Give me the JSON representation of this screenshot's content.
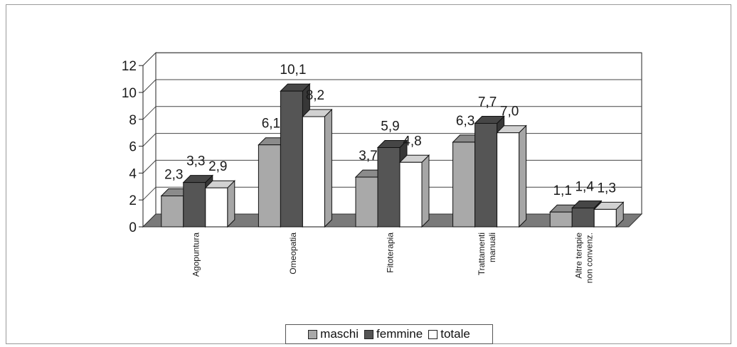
{
  "chart_data": {
    "type": "bar",
    "style": "3d-clustered-column",
    "categories": [
      "Agopuntura",
      "Omeopatia",
      "Fitoterapia",
      "Trattamenti manuali",
      "Altre terapie non convenz."
    ],
    "category_lines": [
      [
        "Agopuntura"
      ],
      [
        "Omeopatia"
      ],
      [
        "Fitoterapia"
      ],
      [
        "Trattamenti",
        "manuali"
      ],
      [
        "Altre terapie",
        "non convenz."
      ]
    ],
    "series": [
      {
        "name": "maschi",
        "values": [
          2.3,
          6.1,
          3.7,
          6.3,
          1.1
        ],
        "labels": [
          "2,3",
          "6,1",
          "3,7",
          "6,3",
          "1,1"
        ],
        "color": "#a9a9a9"
      },
      {
        "name": "femmine",
        "values": [
          3.3,
          10.1,
          5.9,
          7.7,
          1.4
        ],
        "labels": [
          "3,3",
          "10,1",
          "5,9",
          "7,7",
          "1,4"
        ],
        "color": "#555555"
      },
      {
        "name": "totale",
        "values": [
          2.9,
          8.2,
          4.8,
          7.0,
          1.3
        ],
        "labels": [
          "2,9",
          "8,2",
          "4,8",
          "7,0",
          "1,3"
        ],
        "color": "#ffffff"
      }
    ],
    "yticks": [
      "0",
      "2",
      "4",
      "6",
      "8",
      "10",
      "12"
    ],
    "ylim": [
      0,
      12
    ],
    "grid": true,
    "legend_position": "bottom"
  }
}
